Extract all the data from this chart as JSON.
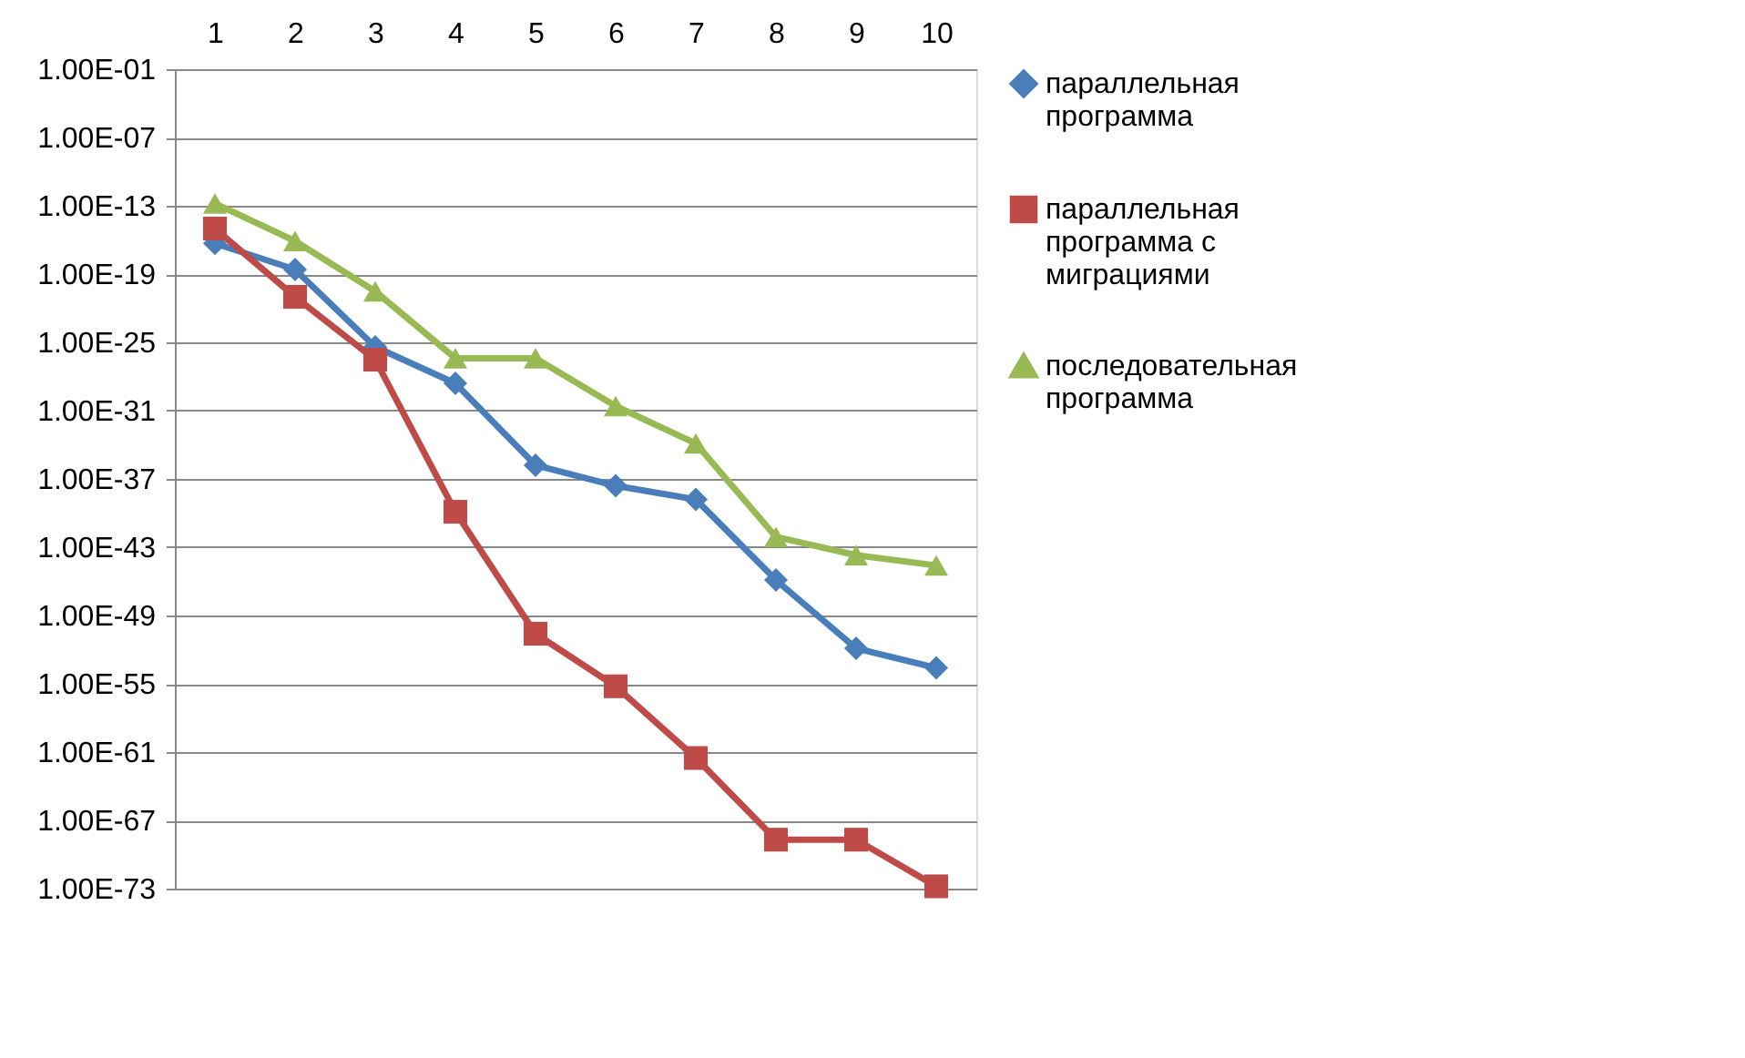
{
  "chart_data": {
    "type": "line",
    "log": "y",
    "grid": "y",
    "legend": "right",
    "line_style": "solid",
    "categories": [
      "1",
      "2",
      "3",
      "4",
      "5",
      "6",
      "7",
      "8",
      "9",
      "10"
    ],
    "ylim": [
      1e-73,
      0.1
    ],
    "yticks": [
      {
        "value": 0.1,
        "label": "1.00E-01"
      },
      {
        "value": 1e-07,
        "label": "1.00E-07"
      },
      {
        "value": 1e-13,
        "label": "1.00E-13"
      },
      {
        "value": 1e-19,
        "label": "1.00E-19"
      },
      {
        "value": 1e-25,
        "label": "1.00E-25"
      },
      {
        "value": 1e-31,
        "label": "1.00E-31"
      },
      {
        "value": 1e-37,
        "label": "1.00E-37"
      },
      {
        "value": 1e-43,
        "label": "1.00E-43"
      },
      {
        "value": 1e-49,
        "label": "1.00E-49"
      },
      {
        "value": 1e-55,
        "label": "1.00E-55"
      },
      {
        "value": 1e-61,
        "label": "1.00E-61"
      },
      {
        "value": 1e-67,
        "label": "1.00E-67"
      },
      {
        "value": 1e-73,
        "label": "1.00E-73"
      }
    ],
    "series": [
      {
        "name": "параллельная программа",
        "color": "#4a7ebb",
        "marker": "diamond",
        "values": [
          5e-17,
          2.5e-19,
          4e-26,
          2.5e-29,
          1.6e-36,
          2.5e-38,
          1.6e-39,
          1.3e-46,
          1.3e-52,
          2.5e-54
        ]
      },
      {
        "name": "параллельная программа с миграциями",
        "color": "#be4b48",
        "marker": "square",
        "values": [
          1e-15,
          1e-21,
          3e-27,
          1.3e-40,
          2.5e-51,
          6e-56,
          3e-62,
          2e-69,
          2e-69,
          1.6e-73
        ]
      },
      {
        "name": "последовательная программа",
        "color": "#98b954",
        "marker": "triangle",
        "values": [
          1.6e-13,
          8e-17,
          3e-21,
          4e-27,
          4e-27,
          2.5e-31,
          1.3e-34,
          8e-43,
          2e-44,
          2.5e-45
        ]
      }
    ]
  }
}
